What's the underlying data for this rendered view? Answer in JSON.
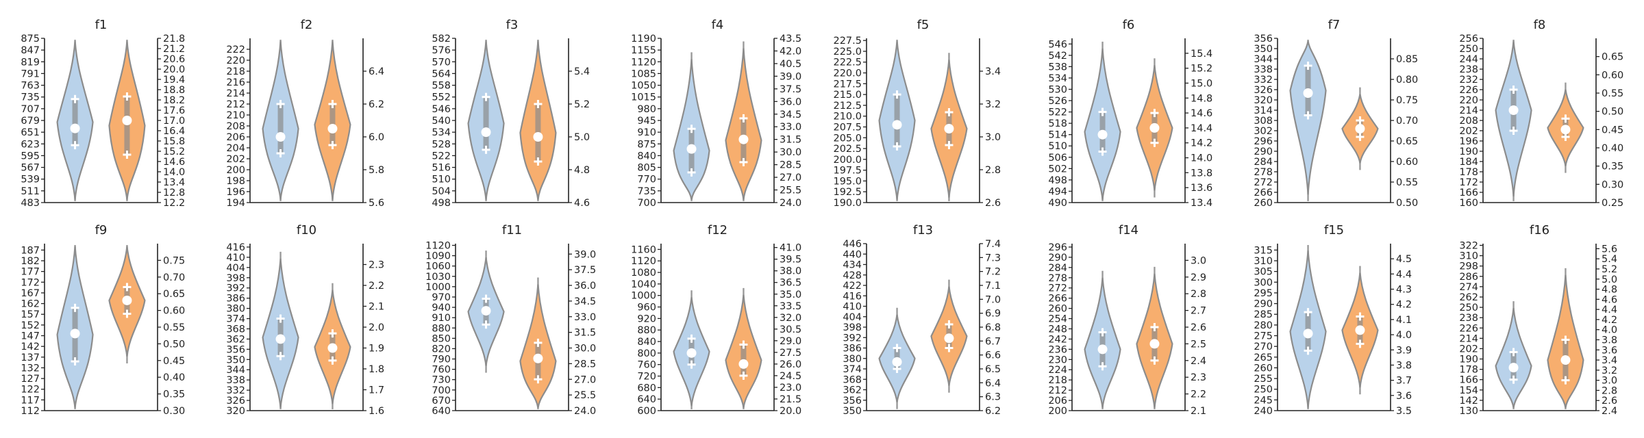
{
  "chart_data": [
    {
      "title": "f1",
      "type": "violin",
      "left_ticks": [
        "483",
        "511",
        "539",
        "567",
        "595",
        "623",
        "651",
        "679",
        "707",
        "735",
        "763",
        "791",
        "819",
        "847",
        "875"
      ],
      "right_ticks": [
        "12.2",
        "12.8",
        "13.4",
        "14.0",
        "14.6",
        "15.2",
        "15.8",
        "16.4",
        "17.0",
        "17.6",
        "18.2",
        "18.8",
        "19.4",
        "20.0",
        "20.6",
        "21.2",
        "21.8"
      ],
      "left_range": [
        483,
        875
      ],
      "right_range": [
        12.2,
        21.8
      ],
      "series": [
        {
          "side": "left",
          "color": "#b9d2ea",
          "mean": 660,
          "q1": 620,
          "q3": 730
        },
        {
          "side": "right",
          "color": "#f7ae6e",
          "mean": 17.0,
          "q1": 15.0,
          "q3": 18.4
        }
      ]
    },
    {
      "title": "f2",
      "type": "violin",
      "left_ticks": [
        "194",
        "196",
        "198",
        "200",
        "202",
        "204",
        "206",
        "208",
        "210",
        "212",
        "214",
        "216",
        "218",
        "220",
        "222"
      ],
      "right_ticks": [
        "5.6",
        "5.8",
        "6.0",
        "6.2",
        "6.4"
      ],
      "left_range": [
        194,
        224
      ],
      "right_range": [
        5.6,
        6.6
      ],
      "series": [
        {
          "side": "left",
          "color": "#b9d2ea",
          "mean": 206,
          "q1": 203,
          "q3": 212
        },
        {
          "side": "right",
          "color": "#f7ae6e",
          "mean": 6.05,
          "q1": 5.95,
          "q3": 6.2
        }
      ]
    },
    {
      "title": "f3",
      "type": "violin",
      "left_ticks": [
        "498",
        "504",
        "510",
        "516",
        "522",
        "528",
        "534",
        "540",
        "546",
        "552",
        "558",
        "564",
        "570",
        "576",
        "582"
      ],
      "right_ticks": [
        "4.6",
        "4.8",
        "5.0",
        "5.2",
        "5.4"
      ],
      "left_range": [
        498,
        582
      ],
      "right_range": [
        4.6,
        5.6
      ],
      "series": [
        {
          "side": "left",
          "color": "#b9d2ea",
          "mean": 534,
          "q1": 525,
          "q3": 552
        },
        {
          "side": "right",
          "color": "#f7ae6e",
          "mean": 5.0,
          "q1": 4.85,
          "q3": 5.2
        }
      ]
    },
    {
      "title": "f4",
      "type": "violin",
      "left_ticks": [
        "700",
        "735",
        "770",
        "805",
        "840",
        "875",
        "910",
        "945",
        "980",
        "1015",
        "1050",
        "1085",
        "1120",
        "1155",
        "1190"
      ],
      "right_ticks": [
        "24.0",
        "25.5",
        "27.0",
        "28.5",
        "30.0",
        "31.5",
        "33.0",
        "34.5",
        "36.0",
        "37.5",
        "39.0",
        "40.5",
        "42.0",
        "43.5"
      ],
      "left_range": [
        700,
        1190
      ],
      "right_range": [
        24.0,
        43.5
      ],
      "series": [
        {
          "side": "left",
          "color": "#b9d2ea",
          "mean": 860,
          "q1": 790,
          "q3": 920
        },
        {
          "side": "right",
          "color": "#f7ae6e",
          "mean": 31.5,
          "q1": 28.8,
          "q3": 34.0
        }
      ]
    },
    {
      "title": "f5",
      "type": "violin",
      "left_ticks": [
        "190.0",
        "192.5",
        "195.0",
        "197.5",
        "200.0",
        "202.5",
        "205.0",
        "207.5",
        "210.0",
        "212.5",
        "215.0",
        "217.5",
        "220.0",
        "222.5",
        "225.0",
        "227.5"
      ],
      "right_ticks": [
        "2.6",
        "2.8",
        "3.0",
        "3.2",
        "3.4"
      ],
      "left_range": [
        190,
        228
      ],
      "right_range": [
        2.6,
        3.6
      ],
      "series": [
        {
          "side": "left",
          "color": "#b9d2ea",
          "mean": 208,
          "q1": 203,
          "q3": 215
        },
        {
          "side": "right",
          "color": "#f7ae6e",
          "mean": 3.05,
          "q1": 2.95,
          "q3": 3.15
        }
      ]
    },
    {
      "title": "f6",
      "type": "violin",
      "left_ticks": [
        "490",
        "494",
        "498",
        "502",
        "506",
        "510",
        "514",
        "518",
        "522",
        "526",
        "530",
        "534",
        "538",
        "542",
        "546"
      ],
      "right_ticks": [
        "13.4",
        "13.6",
        "13.8",
        "14.0",
        "14.2",
        "14.4",
        "14.6",
        "14.8",
        "15.0",
        "15.2",
        "15.4"
      ],
      "left_range": [
        490,
        548
      ],
      "right_range": [
        13.4,
        15.6
      ],
      "series": [
        {
          "side": "left",
          "color": "#b9d2ea",
          "mean": 514,
          "q1": 508,
          "q3": 522
        },
        {
          "side": "right",
          "color": "#f7ae6e",
          "mean": 14.4,
          "q1": 14.2,
          "q3": 14.6
        }
      ]
    },
    {
      "title": "f7",
      "type": "violin",
      "left_ticks": [
        "260",
        "266",
        "272",
        "278",
        "284",
        "290",
        "296",
        "302",
        "308",
        "314",
        "320",
        "326",
        "332",
        "338",
        "344",
        "350",
        "356"
      ],
      "right_ticks": [
        "0.50",
        "0.55",
        "0.60",
        "0.65",
        "0.70",
        "0.75",
        "0.80",
        "0.85"
      ],
      "left_range": [
        260,
        356
      ],
      "right_range": [
        0.5,
        0.9
      ],
      "series": [
        {
          "side": "left",
          "color": "#b9d2ea",
          "mean": 324,
          "q1": 311,
          "q3": 340
        },
        {
          "side": "right",
          "color": "#f7ae6e",
          "mean": 0.68,
          "q1": 0.66,
          "q3": 0.7
        }
      ]
    },
    {
      "title": "f8",
      "type": "violin",
      "left_ticks": [
        "160",
        "166",
        "172",
        "178",
        "184",
        "190",
        "196",
        "202",
        "208",
        "214",
        "220",
        "226",
        "232",
        "238",
        "244",
        "250",
        "256"
      ],
      "right_ticks": [
        "0.25",
        "0.30",
        "0.35",
        "0.40",
        "0.45",
        "0.50",
        "0.55",
        "0.60",
        "0.65"
      ],
      "left_range": [
        160,
        256
      ],
      "right_range": [
        0.25,
        0.7
      ],
      "series": [
        {
          "side": "left",
          "color": "#b9d2ea",
          "mean": 214,
          "q1": 202,
          "q3": 226
        },
        {
          "side": "right",
          "color": "#f7ae6e",
          "mean": 0.45,
          "q1": 0.43,
          "q3": 0.48
        }
      ]
    },
    {
      "title": "f9",
      "type": "violin",
      "left_ticks": [
        "112",
        "117",
        "122",
        "127",
        "132",
        "137",
        "142",
        "147",
        "152",
        "157",
        "162",
        "167",
        "172",
        "177",
        "182",
        "187"
      ],
      "right_ticks": [
        "0.30",
        "0.35",
        "0.40",
        "0.45",
        "0.50",
        "0.55",
        "0.60",
        "0.65",
        "0.70",
        "0.75"
      ],
      "left_range": [
        112,
        190
      ],
      "right_range": [
        0.3,
        0.8
      ],
      "series": [
        {
          "side": "left",
          "color": "#b9d2ea",
          "mean": 148,
          "q1": 135,
          "q3": 160
        },
        {
          "side": "right",
          "color": "#f7ae6e",
          "mean": 0.63,
          "q1": 0.59,
          "q3": 0.67
        }
      ]
    },
    {
      "title": "f10",
      "type": "violin",
      "left_ticks": [
        "320",
        "326",
        "332",
        "338",
        "344",
        "350",
        "356",
        "362",
        "368",
        "374",
        "380",
        "386",
        "392",
        "398",
        "404",
        "410",
        "416"
      ],
      "right_ticks": [
        "1.6",
        "1.7",
        "1.8",
        "1.9",
        "2.0",
        "2.1",
        "2.2",
        "2.3"
      ],
      "left_range": [
        320,
        418
      ],
      "right_range": [
        1.6,
        2.4
      ],
      "series": [
        {
          "side": "left",
          "color": "#b9d2ea",
          "mean": 362,
          "q1": 352,
          "q3": 374
        },
        {
          "side": "right",
          "color": "#f7ae6e",
          "mean": 1.9,
          "q1": 1.84,
          "q3": 1.97
        }
      ]
    },
    {
      "title": "f11",
      "type": "violin",
      "left_ticks": [
        "640",
        "670",
        "700",
        "730",
        "760",
        "790",
        "820",
        "850",
        "880",
        "910",
        "940",
        "970",
        "1000",
        "1030",
        "1060",
        "1090",
        "1120"
      ],
      "right_ticks": [
        "24.0",
        "25.5",
        "27.0",
        "28.5",
        "30.0",
        "31.5",
        "33.0",
        "34.5",
        "36.0",
        "37.5",
        "39.0"
      ],
      "left_range": [
        640,
        1125
      ],
      "right_range": [
        24.0,
        40.0
      ],
      "series": [
        {
          "side": "left",
          "color": "#b9d2ea",
          "mean": 930,
          "q1": 890,
          "q3": 965
        },
        {
          "side": "right",
          "color": "#f7ae6e",
          "mean": 29.0,
          "q1": 27.0,
          "q3": 30.5
        }
      ]
    },
    {
      "title": "f12",
      "type": "violin",
      "left_ticks": [
        "600",
        "640",
        "680",
        "720",
        "760",
        "800",
        "840",
        "880",
        "920",
        "960",
        "1000",
        "1040",
        "1080",
        "1120",
        "1160"
      ],
      "right_ticks": [
        "20.0",
        "21.5",
        "23.0",
        "24.5",
        "26.0",
        "27.5",
        "29.0",
        "30.5",
        "32.0",
        "33.5",
        "35.0",
        "36.5",
        "38.0",
        "39.5",
        "41.0"
      ],
      "left_range": [
        600,
        1180
      ],
      "right_range": [
        20.0,
        41.5
      ],
      "series": [
        {
          "side": "left",
          "color": "#b9d2ea",
          "mean": 800,
          "q1": 760,
          "q3": 850
        },
        {
          "side": "right",
          "color": "#f7ae6e",
          "mean": 26.0,
          "q1": 24.5,
          "q3": 28.5
        }
      ]
    },
    {
      "title": "f13",
      "type": "violin",
      "left_ticks": [
        "350",
        "356",
        "362",
        "368",
        "374",
        "380",
        "386",
        "392",
        "398",
        "404",
        "410",
        "416",
        "422",
        "428",
        "434",
        "440",
        "446"
      ],
      "right_ticks": [
        "6.2",
        "6.3",
        "6.4",
        "6.5",
        "6.6",
        "6.7",
        "6.8",
        "6.9",
        "7.0",
        "7.1",
        "7.2",
        "7.3",
        "7.4"
      ],
      "left_range": [
        350,
        446
      ],
      "right_range": [
        6.2,
        7.4
      ],
      "series": [
        {
          "side": "left",
          "color": "#b9d2ea",
          "mean": 378,
          "q1": 374,
          "q3": 386
        },
        {
          "side": "right",
          "color": "#f7ae6e",
          "mean": 6.72,
          "q1": 6.65,
          "q3": 6.82
        }
      ]
    },
    {
      "title": "f14",
      "type": "violin",
      "left_ticks": [
        "200",
        "206",
        "212",
        "218",
        "224",
        "230",
        "236",
        "242",
        "248",
        "254",
        "260",
        "266",
        "272",
        "278",
        "284",
        "290",
        "296"
      ],
      "right_ticks": [
        "2.1",
        "2.2",
        "2.3",
        "2.4",
        "2.5",
        "2.6",
        "2.7",
        "2.8",
        "2.9",
        "3.0"
      ],
      "left_range": [
        200,
        298
      ],
      "right_range": [
        2.1,
        3.1
      ],
      "series": [
        {
          "side": "left",
          "color": "#b9d2ea",
          "mean": 236,
          "q1": 226,
          "q3": 246
        },
        {
          "side": "right",
          "color": "#f7ae6e",
          "mean": 2.5,
          "q1": 2.4,
          "q3": 2.6
        }
      ]
    },
    {
      "title": "f15",
      "type": "violin",
      "left_ticks": [
        "240",
        "245",
        "250",
        "255",
        "260",
        "265",
        "270",
        "275",
        "280",
        "285",
        "290",
        "295",
        "300",
        "305",
        "310",
        "315"
      ],
      "right_ticks": [
        "3.5",
        "3.6",
        "3.7",
        "3.8",
        "3.9",
        "4.0",
        "4.1",
        "4.2",
        "4.3",
        "4.4",
        "4.5"
      ],
      "left_range": [
        240,
        318
      ],
      "right_range": [
        3.5,
        4.6
      ],
      "series": [
        {
          "side": "left",
          "color": "#b9d2ea",
          "mean": 276,
          "q1": 268,
          "q3": 286
        },
        {
          "side": "right",
          "color": "#f7ae6e",
          "mean": 4.03,
          "q1": 3.94,
          "q3": 4.12
        }
      ]
    },
    {
      "title": "f16",
      "type": "violin",
      "left_ticks": [
        "130",
        "142",
        "154",
        "166",
        "178",
        "190",
        "202",
        "214",
        "226",
        "238",
        "250",
        "262",
        "274",
        "286",
        "298",
        "310",
        "322"
      ],
      "right_ticks": [
        "2.4",
        "2.6",
        "2.8",
        "3.0",
        "3.2",
        "3.4",
        "3.6",
        "3.8",
        "4.0",
        "4.2",
        "4.4",
        "4.6",
        "4.8",
        "5.0",
        "5.2",
        "5.4",
        "5.6"
      ],
      "left_range": [
        130,
        324
      ],
      "right_range": [
        2.4,
        5.7
      ],
      "series": [
        {
          "side": "left",
          "color": "#b9d2ea",
          "mean": 180,
          "q1": 166,
          "q3": 198
        },
        {
          "side": "right",
          "color": "#f7ae6e",
          "mean": 3.4,
          "q1": 3.0,
          "q3": 3.8
        }
      ]
    }
  ]
}
